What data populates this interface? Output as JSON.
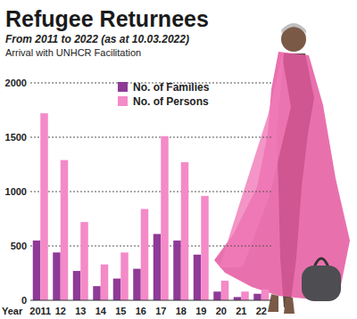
{
  "chart_data": {
    "type": "bar",
    "title": "Refugee Returnees",
    "subtitle": "From 2011 to 2022 (as at 10.03.2022)",
    "annotation": "Arrival with UNHCR Facilitation",
    "x_label": "Year",
    "categories": [
      "2011",
      "12",
      "13",
      "14",
      "15",
      "16",
      "17",
      "18",
      "19",
      "20",
      "21",
      "22"
    ],
    "series": [
      {
        "name": "No. of Families",
        "color": "#8e3a97",
        "values": [
          550,
          440,
          270,
          130,
          200,
          290,
          610,
          550,
          420,
          80,
          30,
          60
        ]
      },
      {
        "name": "No. of Persons",
        "color": "#f48ac8",
        "values": [
          1720,
          1290,
          720,
          330,
          440,
          840,
          1510,
          1270,
          960,
          180,
          80,
          100
        ]
      }
    ],
    "ylim": [
      0,
      2000
    ],
    "yticks": [
      0,
      500,
      1000,
      1500,
      2000
    ],
    "grid": true,
    "legend": "top"
  }
}
